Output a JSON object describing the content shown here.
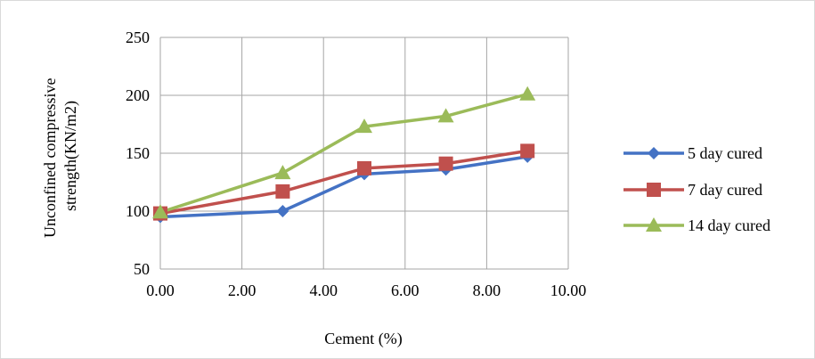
{
  "chart_data": {
    "type": "line",
    "title": "",
    "xlabel": "Cement (%)",
    "ylabel_lines": [
      "Unconfined compressive",
      "strength(KN/m2)"
    ],
    "xlim": [
      0,
      10
    ],
    "ylim": [
      50,
      250
    ],
    "x_ticks": [
      0,
      2,
      4,
      6,
      8,
      10
    ],
    "x_tick_labels": [
      "0.00",
      "2.00",
      "4.00",
      "6.00",
      "8.00",
      "10.00"
    ],
    "y_ticks": [
      50,
      100,
      150,
      200,
      250
    ],
    "y_tick_labels": [
      "50",
      "100",
      "150",
      "200",
      "250"
    ],
    "grid": true,
    "legend_position": "right",
    "x": [
      0,
      3,
      5,
      7,
      9
    ],
    "series": [
      {
        "name": "5 day cured",
        "values": [
          95,
          100,
          132,
          136,
          147
        ],
        "color": "#4472C4",
        "marker": "diamond"
      },
      {
        "name": "7 day cured",
        "values": [
          98,
          117,
          137,
          141,
          152
        ],
        "color": "#C0504D",
        "marker": "square"
      },
      {
        "name": "14 day cured",
        "values": [
          99,
          133,
          173,
          182,
          201
        ],
        "color": "#9BBB59",
        "marker": "triangle"
      }
    ]
  }
}
